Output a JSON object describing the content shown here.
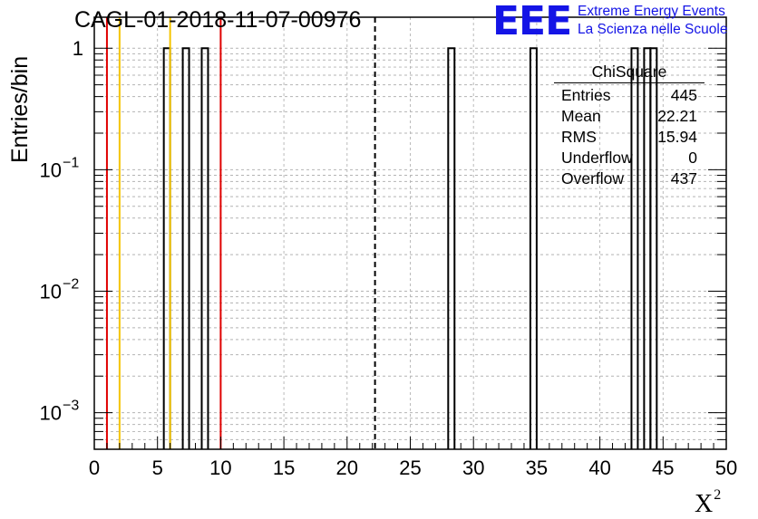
{
  "title": "CAGL-01-2018-11-07-00976",
  "logo": {
    "mark": "EEE",
    "line1": "Extreme Energy Events",
    "line2": "La Scienza nelle Scuole",
    "color": "#1414e6"
  },
  "stats": {
    "name": "ChiSquare",
    "rows": [
      {
        "label": "Entries",
        "value": "445"
      },
      {
        "label": "Mean",
        "value": "22.21"
      },
      {
        "label": "RMS",
        "value": "15.94"
      },
      {
        "label": "Underflow",
        "value": "0"
      },
      {
        "label": "Overflow",
        "value": "437"
      }
    ]
  },
  "chart_data": {
    "type": "bar",
    "xlabel": "X",
    "xlabel_superscript": "2",
    "ylabel": "Entries/bin",
    "xlim": [
      0,
      50
    ],
    "ylim": [
      0.0005,
      1.8
    ],
    "yscale": "log",
    "grid": true,
    "x_ticks": [
      0,
      5,
      10,
      15,
      20,
      25,
      30,
      35,
      40,
      45,
      50
    ],
    "y_ticks": [
      {
        "value": 1,
        "label": "1",
        "exp": ""
      },
      {
        "value": 0.1,
        "label": "10",
        "exp": "−1"
      },
      {
        "value": 0.01,
        "label": "10",
        "exp": "−2"
      },
      {
        "value": 0.001,
        "label": "10",
        "exp": "−3"
      }
    ],
    "bin_width": 0.5,
    "bins": [
      {
        "x0": 5.5,
        "count": 1
      },
      {
        "x0": 7.0,
        "count": 1
      },
      {
        "x0": 8.5,
        "count": 1
      },
      {
        "x0": 28.0,
        "count": 1
      },
      {
        "x0": 34.5,
        "count": 1
      },
      {
        "x0": 42.5,
        "count": 1
      },
      {
        "x0": 43.5,
        "count": 1
      },
      {
        "x0": 44.0,
        "count": 1
      }
    ],
    "vlines": [
      {
        "x": 1,
        "color": "#e00000",
        "style": "solid"
      },
      {
        "x": 2,
        "color": "#f5c400",
        "style": "solid"
      },
      {
        "x": 6,
        "color": "#f5c400",
        "style": "solid"
      },
      {
        "x": 10,
        "color": "#e00000",
        "style": "solid"
      },
      {
        "x": 22.21,
        "color": "#000000",
        "style": "dashed"
      }
    ]
  }
}
